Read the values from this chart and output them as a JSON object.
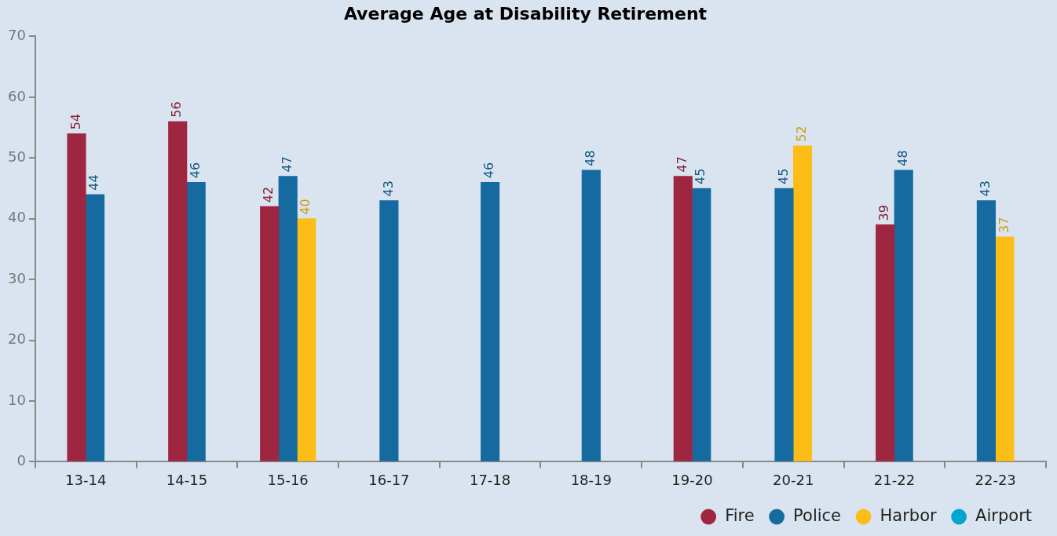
{
  "chart_data": {
    "type": "bar",
    "title": "Average Age at Disability Retirement",
    "categories": [
      "13-14",
      "14-15",
      "15-16",
      "16-17",
      "17-18",
      "18-19",
      "19-20",
      "20-21",
      "21-22",
      "22-23"
    ],
    "series": [
      {
        "name": "Fire",
        "color": "#9e2640",
        "values": [
          54,
          56,
          42,
          null,
          null,
          null,
          47,
          null,
          39,
          null
        ]
      },
      {
        "name": "Police",
        "color": "#156aa0",
        "values": [
          44,
          46,
          47,
          43,
          46,
          48,
          45,
          45,
          48,
          43
        ]
      },
      {
        "name": "Harbor",
        "color": "#fcbe16",
        "values": [
          null,
          null,
          40,
          null,
          null,
          null,
          null,
          52,
          null,
          37
        ]
      },
      {
        "name": "Airport",
        "color": "#00a6d0",
        "values": [
          null,
          null,
          null,
          null,
          null,
          null,
          null,
          null,
          null,
          null
        ]
      }
    ],
    "ylim": [
      0,
      70
    ],
    "yticks": [
      0,
      10,
      20,
      30,
      40,
      50,
      60,
      70
    ],
    "legend": "bottom right",
    "data_labels": true
  }
}
